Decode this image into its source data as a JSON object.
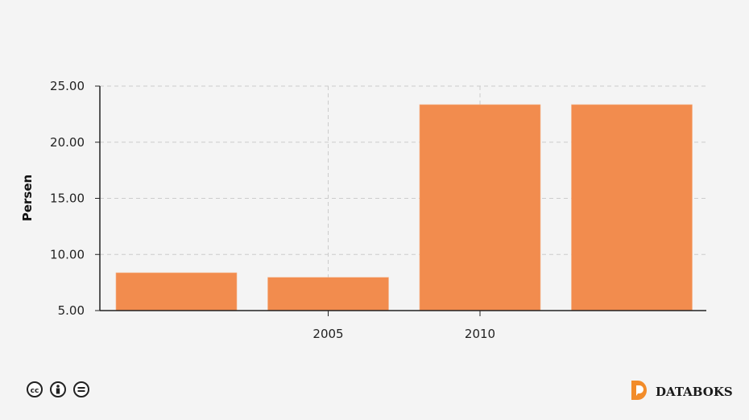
{
  "chart_data": {
    "type": "bar",
    "title": "",
    "xlabel": "",
    "ylabel": "Persen",
    "categories": [
      "",
      "2005",
      "2010",
      ""
    ],
    "values": [
      8.37,
      7.96,
      23.35,
      23.35
    ],
    "ylim": [
      5,
      25
    ],
    "yticks": [
      "5.00",
      "10.00",
      "15.00",
      "20.00",
      "25.00"
    ],
    "ytick_values": [
      5,
      10,
      15,
      20,
      25
    ],
    "grid": true,
    "bar_color": "#f28c4e"
  },
  "footer": {
    "license_icons": [
      "cc-icon",
      "by-icon",
      "nd-icon"
    ],
    "brand": "DATABOKS",
    "brand_color": "#f28c2a"
  }
}
